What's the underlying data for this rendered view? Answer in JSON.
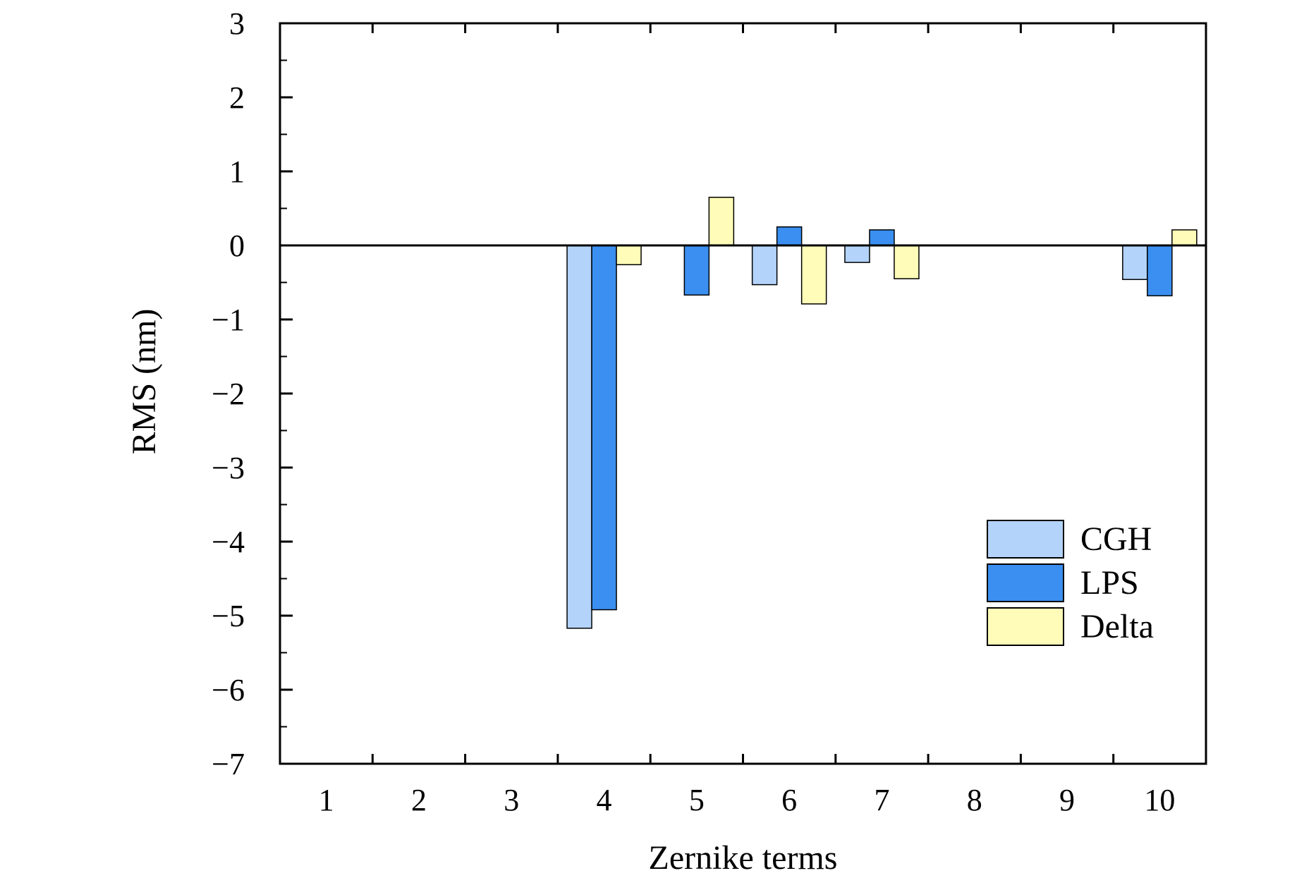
{
  "chart_data": {
    "type": "bar",
    "xlabel": "Zernike terms",
    "ylabel": "RMS (nm)",
    "ylim": [
      -7,
      3
    ],
    "y_ticks": [
      "3",
      "2",
      "1",
      "0",
      "−1",
      "−2",
      "−3",
      "−4",
      "−5",
      "−6",
      "−7"
    ],
    "y_tick_values": [
      3,
      2,
      1,
      0,
      -1,
      -2,
      -3,
      -4,
      -5,
      -6,
      -7
    ],
    "categories": [
      "1",
      "2",
      "3",
      "4",
      "5",
      "6",
      "7",
      "8",
      "9",
      "10"
    ],
    "series": [
      {
        "name": "CGH",
        "color": "#b3d3fa",
        "values": [
          0,
          0,
          0,
          -5.17,
          0,
          -0.53,
          -0.23,
          0,
          0,
          -0.46
        ]
      },
      {
        "name": "LPS",
        "color": "#3a8ff0",
        "values": [
          0,
          0,
          0,
          -4.92,
          -0.67,
          0.25,
          0.21,
          0,
          0,
          -0.68
        ]
      },
      {
        "name": "Delta",
        "color": "#fefcb8",
        "values": [
          0,
          0,
          0,
          -0.26,
          0.65,
          -0.79,
          -0.45,
          0,
          0,
          0.21
        ]
      }
    ],
    "legend_position": "bottom-right",
    "grid": false
  }
}
